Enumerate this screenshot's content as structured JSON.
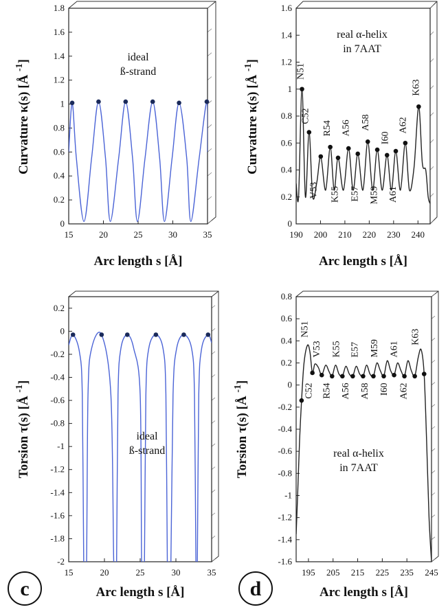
{
  "panel_letters": [
    "c",
    "d"
  ],
  "chart_data": [
    {
      "id": "a",
      "type": "line",
      "title": "",
      "annotation": [
        "ideal",
        "ß-strand"
      ],
      "xlabel": "Arc length s [Å]",
      "ylabel": "Curvature κ(s) [Å -1]",
      "ylabel_parts": {
        "main": "Curvature κ(s)  [Å",
        "sup": "-1",
        "close": "]"
      },
      "xlim": [
        15,
        35
      ],
      "ylim": [
        0,
        1.8
      ],
      "xticks": [
        15,
        20,
        25,
        30,
        35
      ],
      "xtick_labels": [
        "15",
        "20",
        "25",
        "30",
        "35"
      ],
      "yticks": [
        0,
        0.2,
        0.4,
        0.6,
        0.8,
        1,
        1.2,
        1.4,
        1.6,
        1.8
      ],
      "ytick_labels": [
        "0",
        "0.2",
        "0.4",
        "0.6",
        "0.8",
        "1",
        "1.2",
        "1.4",
        "1.6",
        "1.8"
      ],
      "series": [
        {
          "name": "curve",
          "style": "line",
          "color": "#4a63d6",
          "x": [
            15,
            15.5,
            16.1,
            17.2,
            18.3,
            19.3,
            20.3,
            21.0,
            22.2,
            23.2,
            24.2,
            24.9,
            26.0,
            27.1,
            28.1,
            28.8,
            29.9,
            30.9,
            32.0,
            32.6,
            33.8,
            34.9,
            35
          ],
          "y": [
            0.6,
            1.01,
            0.55,
            0.02,
            0.55,
            1.02,
            0.55,
            0.02,
            0.55,
            1.02,
            0.55,
            0.02,
            0.55,
            1.02,
            0.55,
            0.02,
            0.55,
            1.01,
            0.55,
            0.02,
            0.55,
            1.02,
            0.6
          ]
        },
        {
          "name": "residues",
          "style": "markers",
          "color": "#1a2a5a",
          "x": [
            15.5,
            19.3,
            23.2,
            27.1,
            30.9,
            34.9
          ],
          "y": [
            1.01,
            1.02,
            1.02,
            1.02,
            1.01,
            1.02
          ]
        }
      ],
      "residue_labels": []
    },
    {
      "id": "b",
      "type": "line",
      "title": "",
      "annotation": [
        "real α-helix",
        "in 7AAT"
      ],
      "xlabel": "Arc length s [Å]",
      "ylabel": "Curvature κ(s) [Å -1]",
      "ylabel_parts": {
        "main": "Curvature κ(s)  [Å",
        "sup": "-1",
        "close": "]"
      },
      "xlim": [
        190,
        245
      ],
      "ylim": [
        0,
        1.6
      ],
      "xticks": [
        190,
        200,
        210,
        220,
        230,
        240
      ],
      "xtick_labels": [
        "190",
        "200",
        "210",
        "220",
        "230",
        "240"
      ],
      "yticks": [
        0,
        0.2,
        0.4,
        0.6,
        0.8,
        1,
        1.2,
        1.4,
        1.6
      ],
      "ytick_labels": [
        "0",
        "0.2",
        "0.4",
        "0.6",
        "0.8",
        "1",
        "1.2",
        "1.4",
        "1.6"
      ],
      "series": [
        {
          "name": "curve",
          "style": "line",
          "color": "#222222",
          "x": [
            190,
            191,
            192.4,
            193.8,
            195.3,
            196.8,
            198.5,
            200.1,
            202.1,
            204.0,
            205.6,
            207.2,
            209.4,
            211.5,
            213.4,
            215.3,
            217.4,
            219.4,
            221.4,
            223.3,
            225.3,
            227.3,
            229.1,
            230.9,
            232.8,
            234.8,
            236.5,
            238.4,
            240.3,
            241.8,
            243.2,
            244.2,
            245
          ],
          "y": [
            0.3,
            0.2,
            1.0,
            0.2,
            0.68,
            0.2,
            0.31,
            0.5,
            0.25,
            0.57,
            0.25,
            0.49,
            0.25,
            0.56,
            0.25,
            0.52,
            0.25,
            0.61,
            0.25,
            0.55,
            0.25,
            0.51,
            0.25,
            0.54,
            0.25,
            0.6,
            0.25,
            0.42,
            0.87,
            0.45,
            0.4,
            0.2,
            0.15
          ]
        },
        {
          "name": "residues",
          "style": "markers",
          "color": "#111111",
          "x": [
            192.4,
            195.3,
            200.1,
            204.0,
            207.2,
            211.5,
            215.3,
            219.4,
            223.3,
            227.3,
            230.9,
            234.8,
            240.3
          ],
          "y": [
            1.0,
            0.68,
            0.5,
            0.57,
            0.49,
            0.56,
            0.52,
            0.61,
            0.55,
            0.51,
            0.54,
            0.6,
            0.87
          ]
        }
      ],
      "residue_labels": [
        {
          "text": "N51",
          "x": 192.9,
          "y": 1.07,
          "rotate": true
        },
        {
          "text": "C52",
          "x": 195.0,
          "y": 0.74,
          "rotate": true
        },
        {
          "text": "V53",
          "x": 198.3,
          "y": 0.31,
          "rotate": true,
          "below": true
        },
        {
          "text": "R54",
          "x": 203.8,
          "y": 0.65,
          "rotate": true
        },
        {
          "text": "K55",
          "x": 207.0,
          "y": 0.28,
          "rotate": true,
          "below": true
        },
        {
          "text": "A56",
          "x": 211.6,
          "y": 0.65,
          "rotate": true
        },
        {
          "text": "E57",
          "x": 215.2,
          "y": 0.28,
          "rotate": true,
          "below": true
        },
        {
          "text": "A58",
          "x": 219.6,
          "y": 0.69,
          "rotate": true
        },
        {
          "text": "M59",
          "x": 223.2,
          "y": 0.28,
          "rotate": true,
          "below": true
        },
        {
          "text": "I60",
          "x": 227.7,
          "y": 0.59,
          "rotate": true
        },
        {
          "text": "A61",
          "x": 230.9,
          "y": 0.28,
          "rotate": true,
          "below": true
        },
        {
          "text": "A62",
          "x": 235.0,
          "y": 0.67,
          "rotate": true
        },
        {
          "text": "K63",
          "x": 240.3,
          "y": 0.95,
          "rotate": true
        }
      ]
    },
    {
      "id": "c",
      "type": "line",
      "title": "",
      "annotation": [
        "ideal",
        "ß-strand"
      ],
      "xlabel": "Arc length s [Å]",
      "ylabel": "Torsion τ(s) [Å -1]",
      "ylabel_parts": {
        "main": "Torsion τ(s)  [Å",
        "sup": "-1",
        "close": "]"
      },
      "xlim": [
        15,
        35
      ],
      "ylim": [
        -2,
        0.3
      ],
      "xticks": [
        15,
        20,
        25,
        30,
        35
      ],
      "xtick_labels": [
        "15",
        "20",
        "25",
        "30",
        "35"
      ],
      "yticks": [
        -2,
        -1.8,
        -1.6,
        -1.4,
        -1.2,
        -1,
        -0.8,
        -0.6,
        -0.4,
        -0.2,
        0,
        0.2
      ],
      "ytick_labels": [
        "-2",
        "-1.8",
        "-1.6",
        "-1.4",
        "-1.2",
        "-1",
        "-0.8",
        "-0.6",
        "-0.4",
        "-0.2",
        "0",
        "0.2"
      ],
      "series": [
        {
          "name": "curve",
          "style": "line",
          "color": "#4a63d6",
          "x": [
            15,
            15.6,
            16.5,
            16.9,
            17.1,
            17.3,
            17.5,
            17.7,
            18.2,
            19.6,
            20.9,
            21.3,
            21.5,
            21.7,
            21.9,
            22.3,
            23.2,
            24.1,
            25.0,
            25.2,
            25.4,
            25.6,
            25.8,
            26.2,
            27.2,
            28.2,
            28.6,
            28.8,
            29.0,
            29.3,
            29.6,
            30.1,
            31.1,
            32.2,
            32.6,
            32.8,
            33.0,
            33.2,
            33.6,
            34.5,
            35
          ],
          "y": [
            -0.12,
            -0.03,
            -0.18,
            -0.55,
            -2.0,
            -2.0,
            -2.0,
            -0.55,
            -0.15,
            -0.03,
            -0.55,
            -2.0,
            -2.0,
            -2.0,
            -0.55,
            -0.15,
            -0.03,
            -0.15,
            -0.55,
            -2.0,
            -2.0,
            -2.0,
            -0.55,
            -0.15,
            -0.03,
            -0.15,
            -0.55,
            -2.0,
            -2.0,
            -2.0,
            -0.55,
            -0.15,
            -0.03,
            -0.15,
            -0.55,
            -2.0,
            -2.0,
            -0.55,
            -0.15,
            -0.03,
            -0.1
          ]
        },
        {
          "name": "residues",
          "style": "markers",
          "color": "#1a2a5a",
          "x": [
            15.6,
            19.6,
            23.2,
            27.2,
            31.1,
            34.5
          ],
          "y": [
            -0.03,
            -0.03,
            -0.03,
            -0.03,
            -0.03,
            -0.03
          ]
        }
      ],
      "residue_labels": []
    },
    {
      "id": "d",
      "type": "line",
      "title": "",
      "annotation": [
        "real α-helix",
        "in 7AAT"
      ],
      "xlabel": "Arc length s [Å]",
      "ylabel": "Torsion τ(s) [Å -1]",
      "ylabel_parts": {
        "main": "Torsion τ(s)  [Å",
        "sup": "-1",
        "close": "]"
      },
      "xlim": [
        190,
        245
      ],
      "ylim": [
        -1.6,
        0.8
      ],
      "xticks": [
        195,
        205,
        215,
        225,
        235,
        245
      ],
      "xtick_labels": [
        "195",
        "205",
        "215",
        "225",
        "235",
        "245"
      ],
      "yticks": [
        -1.6,
        -1.4,
        -1.2,
        -1,
        -0.8,
        -0.6,
        -0.4,
        -0.2,
        0,
        0.2,
        0.4,
        0.6,
        0.8
      ],
      "ytick_labels": [
        "-1.6",
        "-1.4",
        "-1.2",
        "-1",
        "-0.8",
        "-0.6",
        "-0.4",
        "-0.2",
        "0",
        "0.2",
        "0.4",
        "0.6",
        "0.8"
      ],
      "series": [
        {
          "name": "curve",
          "style": "line",
          "color": "#222222",
          "x": [
            190,
            190.6,
            191.4,
            192.2,
            193.2,
            194.6,
            195.6,
            196.6,
            197.6,
            199.0,
            200.4,
            202.0,
            203.4,
            204.6,
            206.0,
            207.4,
            208.8,
            210.2,
            211.6,
            213.0,
            214.4,
            215.8,
            217.2,
            218.6,
            220.0,
            221.4,
            222.8,
            224.2,
            225.6,
            227.0,
            228.4,
            229.8,
            231.2,
            232.6,
            234.0,
            235.4,
            236.8,
            238.2,
            239.6,
            240.8,
            242.0,
            243.0,
            244.0,
            245
          ],
          "y": [
            -1.35,
            -1.0,
            -0.5,
            -0.14,
            0.2,
            0.36,
            0.3,
            0.11,
            0.19,
            0.16,
            0.09,
            0.18,
            0.12,
            0.08,
            0.18,
            0.1,
            0.08,
            0.17,
            0.1,
            0.08,
            0.17,
            0.1,
            0.08,
            0.18,
            0.1,
            0.08,
            0.2,
            0.13,
            0.08,
            0.22,
            0.13,
            0.09,
            0.2,
            0.13,
            0.08,
            0.22,
            0.13,
            0.08,
            0.25,
            0.32,
            0.1,
            -0.5,
            -1.2,
            -1.6
          ]
        },
        {
          "name": "residues",
          "style": "markers",
          "color": "#111111",
          "x": [
            192.2,
            196.6,
            200.4,
            204.6,
            208.8,
            213.0,
            217.2,
            221.4,
            225.6,
            229.8,
            234.0,
            238.2,
            242.0
          ],
          "y": [
            -0.14,
            0.11,
            0.09,
            0.08,
            0.08,
            0.08,
            0.08,
            0.08,
            0.08,
            0.09,
            0.08,
            0.08,
            0.1
          ]
        }
      ],
      "residue_labels": [
        {
          "text": "N51",
          "x": 194.6,
          "y": 0.43,
          "rotate": true
        },
        {
          "text": "C52",
          "x": 196.3,
          "y": 0.02,
          "rotate": true,
          "below": true
        },
        {
          "text": "V53",
          "x": 199.5,
          "y": 0.25,
          "rotate": true
        },
        {
          "text": "R54",
          "x": 203.6,
          "y": 0.02,
          "rotate": true,
          "below": true
        },
        {
          "text": "K55",
          "x": 207.4,
          "y": 0.25,
          "rotate": true
        },
        {
          "text": "A56",
          "x": 211.2,
          "y": 0.02,
          "rotate": true,
          "below": true
        },
        {
          "text": "E57",
          "x": 215.0,
          "y": 0.25,
          "rotate": true
        },
        {
          "text": "A58",
          "x": 219.0,
          "y": 0.02,
          "rotate": true,
          "below": true
        },
        {
          "text": "M59",
          "x": 223.0,
          "y": 0.25,
          "rotate": true
        },
        {
          "text": "I60",
          "x": 226.9,
          "y": 0.02,
          "rotate": true,
          "below": true
        },
        {
          "text": "A61",
          "x": 230.9,
          "y": 0.25,
          "rotate": true
        },
        {
          "text": "A62",
          "x": 234.8,
          "y": 0.02,
          "rotate": true,
          "below": true
        },
        {
          "text": "K63",
          "x": 239.6,
          "y": 0.36,
          "rotate": true
        }
      ]
    }
  ]
}
